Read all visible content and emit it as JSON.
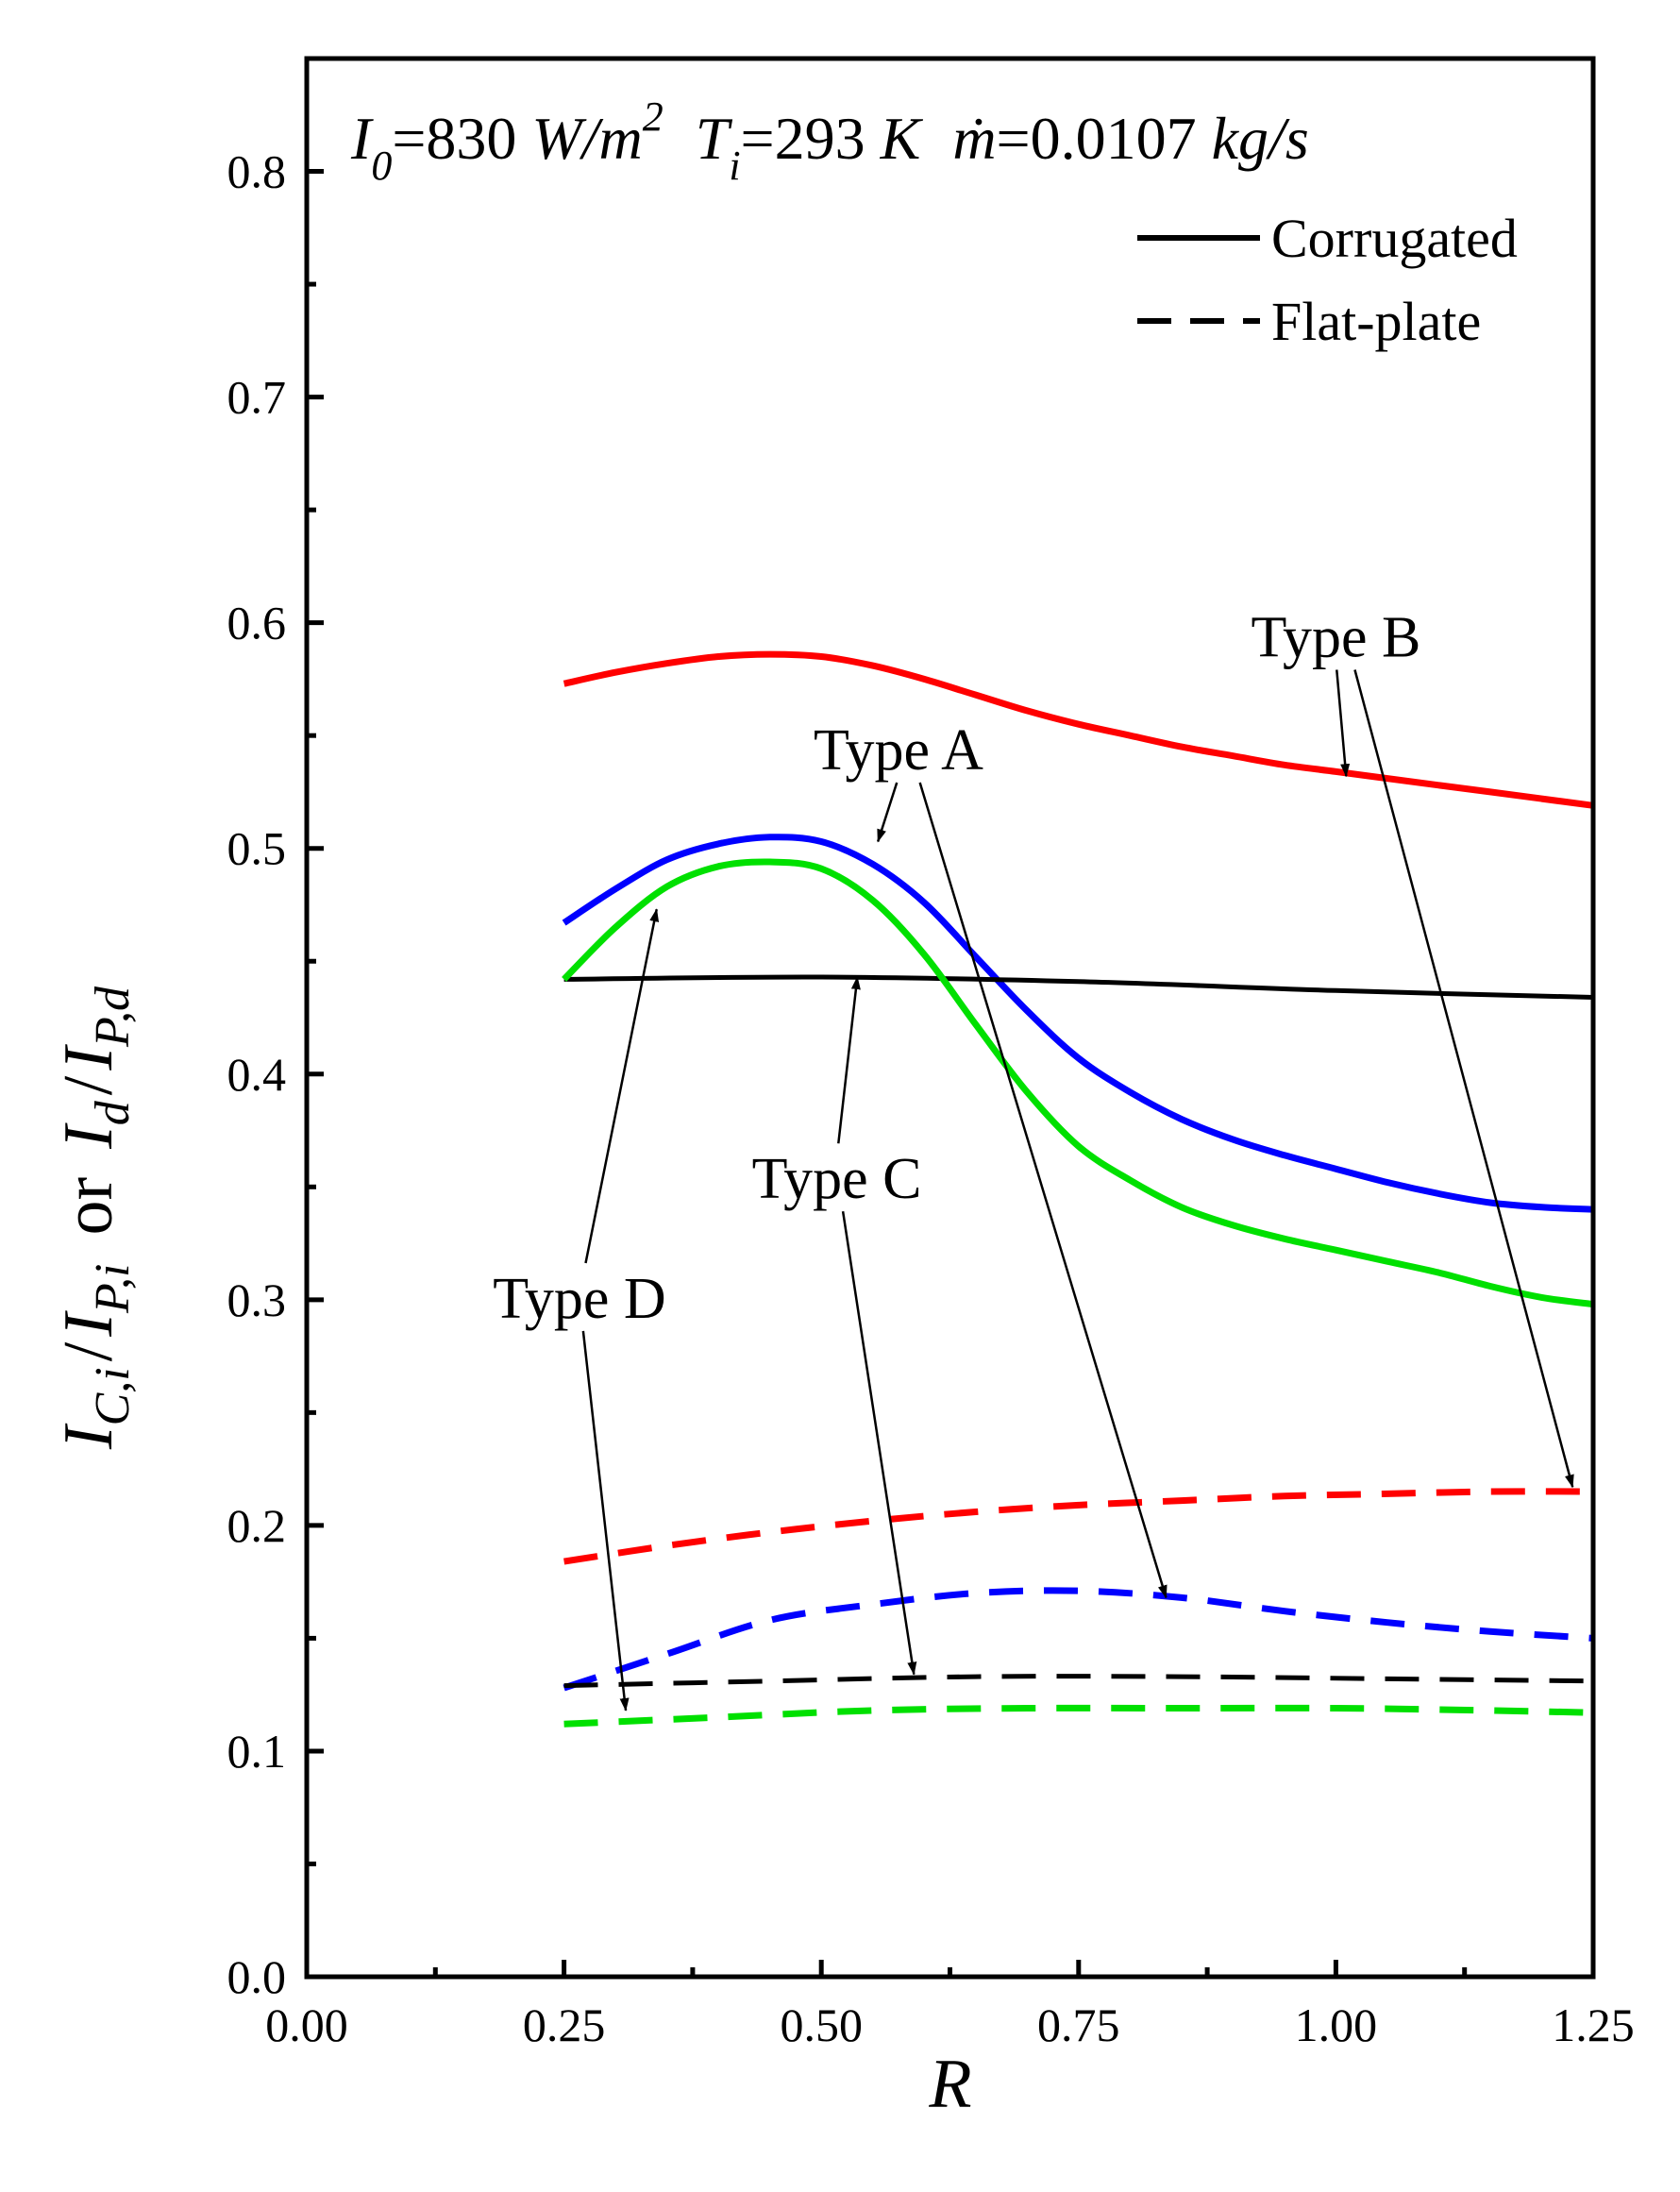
{
  "chart_data": {
    "type": "line",
    "xlabel": "R",
    "ylabel": {
      "left_symbol": "I",
      "left_sub": "C,i",
      "left_den_symbol": "I",
      "left_den_sub": "P,i",
      "or_text": "or",
      "right_symbol": "I",
      "right_sub": "d",
      "right_den_symbol": "I",
      "right_den_sub": "P,d"
    },
    "xlim": [
      0.0,
      1.25
    ],
    "ylim": [
      0.0,
      0.85
    ],
    "xticks": [
      "0.00",
      "0.25",
      "0.50",
      "0.75",
      "1.00",
      "1.25"
    ],
    "yticks": [
      "0.0",
      "0.1",
      "0.2",
      "0.3",
      "0.4",
      "0.5",
      "0.6",
      "0.7",
      "0.8"
    ],
    "parameters": {
      "I0_symbol": "I",
      "I0_sub": "0",
      "I0_value": "=830 ",
      "I0_unit": "W/m",
      "I0_unit_sup": "2",
      "Ti_symbol": "T",
      "Ti_sub": "i",
      "Ti_value": "=293 ",
      "Ti_unit": "K",
      "m_symbol": "ṁ",
      "m_value": "=0.0107 ",
      "m_unit": "kg/s"
    },
    "legend": [
      {
        "label": "Corrugated",
        "style": "solid"
      },
      {
        "label": "Flat-plate",
        "style": "dashed"
      }
    ],
    "series": [
      {
        "name": "Type A",
        "style": "solid",
        "color": "#0000ff",
        "x": [
          0.25,
          0.3,
          0.35,
          0.4,
          0.45,
          0.5,
          0.55,
          0.6,
          0.65,
          0.7,
          0.75,
          0.8,
          0.85,
          0.9,
          0.95,
          1.0,
          1.05,
          1.1,
          1.15,
          1.2,
          1.25
        ],
        "y": [
          0.467,
          0.482,
          0.495,
          0.502,
          0.505,
          0.503,
          0.493,
          0.476,
          0.452,
          0.428,
          0.407,
          0.392,
          0.38,
          0.371,
          0.364,
          0.358,
          0.352,
          0.347,
          0.343,
          0.341,
          0.34
        ]
      },
      {
        "name": "Type B",
        "style": "solid",
        "color": "#ff0000",
        "x": [
          0.25,
          0.3,
          0.35,
          0.4,
          0.45,
          0.5,
          0.55,
          0.6,
          0.65,
          0.7,
          0.75,
          0.8,
          0.85,
          0.9,
          0.95,
          1.0,
          1.05,
          1.1,
          1.15,
          1.2,
          1.25
        ],
        "y": [
          0.573,
          0.578,
          0.582,
          0.585,
          0.586,
          0.585,
          0.581,
          0.575,
          0.568,
          0.561,
          0.555,
          0.55,
          0.545,
          0.541,
          0.537,
          0.534,
          0.531,
          0.528,
          0.525,
          0.522,
          0.519
        ]
      },
      {
        "name": "Type C",
        "style": "solid",
        "color": "#000000",
        "x": [
          0.25,
          0.5,
          0.75,
          1.0,
          1.25
        ],
        "y": [
          0.442,
          0.443,
          0.441,
          0.437,
          0.434
        ]
      },
      {
        "name": "Type D",
        "style": "solid",
        "color": "#00e000",
        "x": [
          0.25,
          0.3,
          0.35,
          0.4,
          0.45,
          0.5,
          0.55,
          0.6,
          0.65,
          0.7,
          0.75,
          0.8,
          0.85,
          0.9,
          0.95,
          1.0,
          1.05,
          1.1,
          1.15,
          1.2,
          1.25
        ],
        "y": [
          0.442,
          0.465,
          0.483,
          0.492,
          0.494,
          0.491,
          0.477,
          0.453,
          0.422,
          0.392,
          0.368,
          0.353,
          0.341,
          0.333,
          0.327,
          0.322,
          0.317,
          0.312,
          0.306,
          0.301,
          0.298
        ]
      },
      {
        "name": "Type A",
        "style": "dashed",
        "color": "#0000ff",
        "x": [
          0.25,
          0.35,
          0.45,
          0.55,
          0.65,
          0.75,
          0.85,
          0.95,
          1.05,
          1.15,
          1.25
        ],
        "y": [
          0.128,
          0.143,
          0.158,
          0.165,
          0.17,
          0.171,
          0.168,
          0.162,
          0.157,
          0.153,
          0.15
        ]
      },
      {
        "name": "Type B",
        "style": "dashed",
        "color": "#ff0000",
        "x": [
          0.25,
          0.35,
          0.45,
          0.55,
          0.65,
          0.75,
          0.85,
          0.95,
          1.05,
          1.15,
          1.25
        ],
        "y": [
          0.184,
          0.191,
          0.197,
          0.202,
          0.206,
          0.209,
          0.211,
          0.213,
          0.214,
          0.215,
          0.215
        ]
      },
      {
        "name": "Type C",
        "style": "dashed",
        "color": "#000000",
        "x": [
          0.25,
          0.45,
          0.65,
          0.85,
          1.05,
          1.25
        ],
        "y": [
          0.129,
          0.131,
          0.133,
          0.133,
          0.132,
          0.131
        ]
      },
      {
        "name": "Type D",
        "style": "dashed",
        "color": "#00e000",
        "x": [
          0.25,
          0.4,
          0.55,
          0.7,
          0.85,
          1.0,
          1.15,
          1.25
        ],
        "y": [
          0.112,
          0.115,
          0.118,
          0.119,
          0.119,
          0.119,
          0.118,
          0.117
        ]
      }
    ],
    "annotations": [
      {
        "text": "Type A",
        "x": 0.575,
        "y": 0.535,
        "arrows_to": [
          [
            0.555,
            0.503
          ],
          [
            0.835,
            0.168
          ]
        ]
      },
      {
        "text": "Type B",
        "x": 1.0,
        "y": 0.585,
        "arrows_to": [
          [
            1.01,
            0.532
          ],
          [
            1.23,
            0.217
          ]
        ]
      },
      {
        "text": "Type C",
        "x": 0.515,
        "y": 0.345,
        "arrows_to": [
          [
            0.535,
            0.443
          ],
          [
            0.59,
            0.134
          ]
        ]
      },
      {
        "text": "Type D",
        "x": 0.265,
        "y": 0.292,
        "arrows_to": [
          [
            0.34,
            0.473
          ],
          [
            0.31,
            0.118
          ]
        ]
      }
    ]
  }
}
